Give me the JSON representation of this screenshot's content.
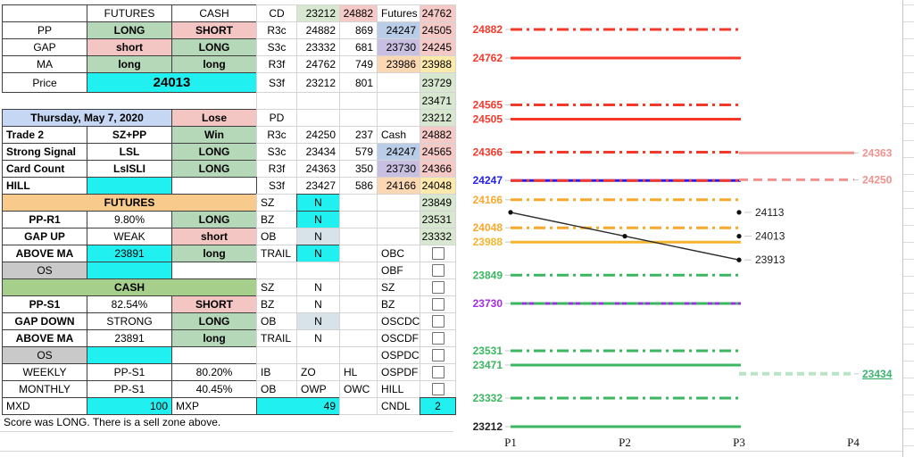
{
  "notes": {
    "score": "Score was LONG. There is a sell zone above."
  },
  "spreadsheet": {
    "origin_x": 2,
    "origin_y": 5,
    "columns": {
      "A": 95,
      "B": 95,
      "C": 95,
      "D": 45,
      "E": 48,
      "F": 42,
      "G": 48,
      "H": 40
    },
    "palette": {
      "g": "#b5d8b9",
      "p": "#f3c5c3",
      "cy": "#21f0f0",
      "bl": "#c6d7f3",
      "or": "#f8cb8d",
      "gh": "#a6cf8b",
      "gy": "#c9c9c9",
      "b2": "#b9cde9",
      "pu": "#c9bfe1",
      "oc": "#fbd8b3",
      "yc": "#fde9a9",
      "pk": "#f4c9c6",
      "gn": "#d8e7cf",
      "nb": "#d7e3e8"
    },
    "rows": [
      {
        "cells": [
          {
            "c": "B",
            "t": "FUTURES"
          },
          {
            "c": "C",
            "t": "CASH"
          },
          {
            "c": "D",
            "t": "CD"
          },
          {
            "c": "E",
            "t": "23212",
            "bg": "gn",
            "a": "r"
          },
          {
            "c": "F",
            "t": "24882",
            "bg": "pk",
            "a": "r"
          },
          {
            "c": "G",
            "t": "Futures",
            "a": "l"
          },
          {
            "c": "H",
            "t": "24762",
            "bg": "pk",
            "a": "r"
          }
        ]
      },
      {
        "cells": [
          {
            "c": "A",
            "t": "PP"
          },
          {
            "c": "B",
            "t": "LONG",
            "bg": "g",
            "b": 1
          },
          {
            "c": "C",
            "t": "SHORT",
            "bg": "p",
            "b": 1
          },
          {
            "c": "D",
            "t": "R3c"
          },
          {
            "c": "E",
            "t": "24882",
            "a": "r"
          },
          {
            "c": "F",
            "t": "869",
            "a": "r"
          },
          {
            "c": "G",
            "t": "24247",
            "bg": "b2",
            "a": "r"
          },
          {
            "c": "H",
            "t": "24505",
            "bg": "pk",
            "a": "r"
          }
        ]
      },
      {
        "cells": [
          {
            "c": "A",
            "t": "GAP"
          },
          {
            "c": "B",
            "t": "short",
            "bg": "p",
            "b": 1
          },
          {
            "c": "C",
            "t": "LONG",
            "bg": "g",
            "b": 1
          },
          {
            "c": "D",
            "t": "S3c"
          },
          {
            "c": "E",
            "t": "23332",
            "a": "r"
          },
          {
            "c": "F",
            "t": "681",
            "a": "r"
          },
          {
            "c": "G",
            "t": "23730",
            "bg": "pu",
            "a": "r"
          },
          {
            "c": "H",
            "t": "24245",
            "bg": "pk",
            "a": "r"
          }
        ]
      },
      {
        "cells": [
          {
            "c": "A",
            "t": "MA"
          },
          {
            "c": "B",
            "t": "long",
            "bg": "g",
            "b": 1
          },
          {
            "c": "C",
            "t": "long",
            "bg": "g",
            "b": 1
          },
          {
            "c": "D",
            "t": "R3f"
          },
          {
            "c": "E",
            "t": "24762",
            "a": "r"
          },
          {
            "c": "F",
            "t": "749",
            "a": "r"
          },
          {
            "c": "G",
            "t": "23986",
            "bg": "oc",
            "a": "r"
          },
          {
            "c": "H",
            "t": "23988",
            "bg": "yc",
            "a": "r"
          }
        ]
      },
      {
        "h": 22,
        "cells": [
          {
            "c": "A",
            "t": "Price"
          },
          {
            "c": "B",
            "s": 2,
            "t": "24013",
            "bg": "cy",
            "b": 1,
            "fs": 15
          },
          {
            "c": "D",
            "t": "S3f"
          },
          {
            "c": "E",
            "t": "23212",
            "a": "r"
          },
          {
            "c": "F",
            "t": "801",
            "a": "r"
          },
          {
            "c": "H",
            "t": "23729",
            "bg": "gn",
            "a": "r"
          }
        ]
      },
      {
        "noleft": 1,
        "cells": [
          {
            "c": "H",
            "t": "23471",
            "bg": "gn",
            "a": "r"
          }
        ]
      },
      {
        "cells": [
          {
            "c": "A",
            "s": 2,
            "t": "Thursday, May 7, 2020",
            "bg": "bl",
            "b": 1
          },
          {
            "c": "C",
            "t": "Lose",
            "bg": "p",
            "b": 1
          },
          {
            "c": "D",
            "t": "PD"
          },
          {
            "c": "H",
            "t": "23212",
            "bg": "gn",
            "a": "r"
          }
        ]
      },
      {
        "cells": [
          {
            "c": "A",
            "t": "Trade 2",
            "a": "l",
            "b": 1
          },
          {
            "c": "B",
            "t": "SZ+PP",
            "b": 1
          },
          {
            "c": "C",
            "t": "Win",
            "bg": "g",
            "b": 1
          },
          {
            "c": "D",
            "t": "R3c"
          },
          {
            "c": "E",
            "t": "24250",
            "a": "r"
          },
          {
            "c": "F",
            "t": "237",
            "a": "r"
          },
          {
            "c": "G",
            "t": "Cash",
            "a": "l"
          },
          {
            "c": "H",
            "t": "24882",
            "bg": "pk",
            "a": "r"
          }
        ]
      },
      {
        "cells": [
          {
            "c": "A",
            "t": "Strong Signal",
            "a": "l",
            "b": 1
          },
          {
            "c": "B",
            "t": "LSL",
            "b": 1
          },
          {
            "c": "C",
            "t": "LONG",
            "bg": "g",
            "b": 1
          },
          {
            "c": "D",
            "t": "S3c"
          },
          {
            "c": "E",
            "t": "23434",
            "a": "r"
          },
          {
            "c": "F",
            "t": "579",
            "a": "r"
          },
          {
            "c": "G",
            "t": "24247",
            "bg": "b2",
            "a": "r"
          },
          {
            "c": "H",
            "t": "24565",
            "bg": "pk",
            "a": "r"
          }
        ]
      },
      {
        "cells": [
          {
            "c": "A",
            "t": "Card Count",
            "a": "l",
            "b": 1
          },
          {
            "c": "B",
            "t": "LsISLI",
            "b": 1
          },
          {
            "c": "C",
            "t": "LONG",
            "bg": "g",
            "b": 1
          },
          {
            "c": "D",
            "t": "R3f"
          },
          {
            "c": "E",
            "t": "24363",
            "a": "r"
          },
          {
            "c": "F",
            "t": "350",
            "a": "r"
          },
          {
            "c": "G",
            "t": "23730",
            "bg": "pu",
            "a": "r"
          },
          {
            "c": "H",
            "t": "24366",
            "bg": "pk",
            "a": "r"
          }
        ]
      },
      {
        "cells": [
          {
            "c": "A",
            "t": "HILL",
            "a": "l",
            "b": 1
          },
          {
            "c": "B",
            "t": "",
            "bg": "cy"
          },
          {
            "c": "D",
            "t": "S3f"
          },
          {
            "c": "E",
            "t": "23427",
            "a": "r"
          },
          {
            "c": "F",
            "t": "586",
            "a": "r"
          },
          {
            "c": "G",
            "t": "24166",
            "bg": "oc",
            "a": "r"
          },
          {
            "c": "H",
            "t": "24048",
            "bg": "yc",
            "a": "r"
          }
        ]
      },
      {
        "cells": [
          {
            "c": "A",
            "s": 3,
            "t": "FUTURES",
            "bg": "or",
            "b": 1
          },
          {
            "c": "D",
            "t": "SZ",
            "a": "l"
          },
          {
            "c": "E",
            "t": "N",
            "bg": "cy",
            "bd": "d"
          },
          {
            "c": "H",
            "t": "23849",
            "bg": "gn",
            "a": "r"
          }
        ]
      },
      {
        "cells": [
          {
            "c": "A",
            "t": "PP-R1",
            "b": 1
          },
          {
            "c": "B",
            "t": "9.80%"
          },
          {
            "c": "C",
            "t": "LONG",
            "bg": "g",
            "b": 1
          },
          {
            "c": "D",
            "t": "BZ",
            "a": "l"
          },
          {
            "c": "E",
            "t": "N",
            "bg": "cy",
            "bd": "d"
          },
          {
            "c": "H",
            "t": "23531",
            "bg": "gn",
            "a": "r"
          }
        ]
      },
      {
        "cells": [
          {
            "c": "A",
            "t": "GAP UP",
            "b": 1
          },
          {
            "c": "B",
            "t": "WEAK"
          },
          {
            "c": "C",
            "t": "short",
            "bg": "p",
            "b": 1
          },
          {
            "c": "D",
            "t": "OB",
            "a": "l"
          },
          {
            "c": "E",
            "t": "N",
            "bg": "nb"
          },
          {
            "c": "H",
            "t": "23332",
            "bg": "gn",
            "a": "r"
          }
        ]
      },
      {
        "cells": [
          {
            "c": "A",
            "t": "ABOVE MA",
            "b": 1
          },
          {
            "c": "B",
            "t": "23891",
            "bg": "cy"
          },
          {
            "c": "C",
            "t": "long",
            "bg": "g",
            "b": 1
          },
          {
            "c": "D",
            "t": "TRAIL",
            "a": "l"
          },
          {
            "c": "E",
            "t": "N",
            "bg": "cy",
            "bd": "d"
          },
          {
            "c": "G",
            "t": "OBC",
            "a": "l"
          },
          {
            "c": "H",
            "cb": 1
          }
        ]
      },
      {
        "cells": [
          {
            "c": "A",
            "t": "OS",
            "bg": "gy"
          },
          {
            "c": "B",
            "t": "",
            "bg": "cy"
          },
          {
            "c": "G",
            "t": "OBF",
            "a": "l"
          },
          {
            "c": "H",
            "cb": 1
          }
        ]
      },
      {
        "cells": [
          {
            "c": "A",
            "s": 3,
            "t": "CASH",
            "bg": "gh",
            "b": 1
          },
          {
            "c": "D",
            "t": "SZ",
            "a": "l"
          },
          {
            "c": "E",
            "t": "N"
          },
          {
            "c": "G",
            "t": "SZ",
            "a": "l"
          },
          {
            "c": "H",
            "cb": 1
          }
        ]
      },
      {
        "cells": [
          {
            "c": "A",
            "t": "PP-S1",
            "b": 1
          },
          {
            "c": "B",
            "t": "82.54%"
          },
          {
            "c": "C",
            "t": "SHORT",
            "bg": "p",
            "b": 1
          },
          {
            "c": "D",
            "t": "BZ",
            "a": "l"
          },
          {
            "c": "E",
            "t": "N"
          },
          {
            "c": "G",
            "t": "BZ",
            "a": "l"
          },
          {
            "c": "H",
            "cb": 1
          }
        ]
      },
      {
        "cells": [
          {
            "c": "A",
            "t": "GAP DOWN",
            "b": 1
          },
          {
            "c": "B",
            "t": "STRONG"
          },
          {
            "c": "C",
            "t": "LONG",
            "bg": "g",
            "b": 1
          },
          {
            "c": "D",
            "t": "OB",
            "a": "l"
          },
          {
            "c": "E",
            "t": "N",
            "bg": "nb"
          },
          {
            "c": "G",
            "t": "OSCDC",
            "a": "l"
          },
          {
            "c": "H",
            "cb": 1
          }
        ]
      },
      {
        "cells": [
          {
            "c": "A",
            "t": "ABOVE MA",
            "b": 1
          },
          {
            "c": "B",
            "t": "23891"
          },
          {
            "c": "C",
            "t": "long",
            "bg": "g",
            "b": 1
          },
          {
            "c": "D",
            "t": "TRAIL",
            "a": "l"
          },
          {
            "c": "E",
            "t": "N"
          },
          {
            "c": "G",
            "t": "OSCDF",
            "a": "l"
          },
          {
            "c": "H",
            "cb": 1
          }
        ]
      },
      {
        "cells": [
          {
            "c": "A",
            "t": "OS",
            "bg": "gy"
          },
          {
            "c": "B",
            "t": "",
            "bg": "cy"
          },
          {
            "c": "G",
            "t": "OSPDC",
            "a": "l"
          },
          {
            "c": "H",
            "cb": 1
          }
        ]
      },
      {
        "cells": [
          {
            "c": "A",
            "t": "WEEKLY"
          },
          {
            "c": "B",
            "t": "PP-S1"
          },
          {
            "c": "C",
            "t": "80.20%"
          },
          {
            "c": "D",
            "t": "IB",
            "a": "l"
          },
          {
            "c": "E",
            "t": "ZO",
            "a": "l"
          },
          {
            "c": "F",
            "t": "HL",
            "a": "l"
          },
          {
            "c": "G",
            "t": "OSPDF",
            "a": "l"
          },
          {
            "c": "H",
            "cb": 1
          }
        ]
      },
      {
        "cells": [
          {
            "c": "A",
            "t": "MONTHLY"
          },
          {
            "c": "B",
            "t": "PP-S1"
          },
          {
            "c": "C",
            "t": "40.45%"
          },
          {
            "c": "D",
            "t": "OB",
            "a": "l"
          },
          {
            "c": "E",
            "t": "OWP",
            "a": "l"
          },
          {
            "c": "F",
            "t": "OWC",
            "a": "l"
          },
          {
            "c": "G",
            "t": "HILL",
            "a": "l"
          },
          {
            "c": "H",
            "cb": 1
          }
        ]
      },
      {
        "cells": [
          {
            "c": "A",
            "t": "MXD",
            "a": "l"
          },
          {
            "c": "B",
            "t": "100",
            "bg": "cy",
            "a": "r"
          },
          {
            "c": "C",
            "t": "MXP",
            "a": "l"
          },
          {
            "c": "D",
            "s": 2,
            "t": "49",
            "bg": "cy",
            "a": "r",
            "bd": "d"
          },
          {
            "c": "G",
            "t": "CNDL",
            "a": "l"
          },
          {
            "c": "H",
            "t": "2",
            "bg": "cy",
            "bd": "d"
          }
        ]
      }
    ]
  },
  "chart_data": {
    "type": "line",
    "x_categories": [
      "P1",
      "P2",
      "P3",
      "P4"
    ],
    "ylim": [
      23212,
      24882
    ],
    "grid": false,
    "palette": {
      "red": "#f4392b",
      "blue": "#2420f0",
      "orange": "#f7a82b",
      "gold": "#f2b52d",
      "green": "#3bb661",
      "purple": "#a32ce6",
      "salmon": "#f0928e",
      "lightgreen_line": "#b9e5c5",
      "lightgreen_label": "#3cb371",
      "black": "#222222"
    },
    "levels": [
      {
        "v": 24882,
        "color": "red",
        "style": "dashdot",
        "span": "main"
      },
      {
        "v": 24762,
        "color": "red",
        "style": "solid",
        "span": "main"
      },
      {
        "v": 24565,
        "color": "red",
        "style": "dashdot",
        "span": "main"
      },
      {
        "v": 24505,
        "color": "red",
        "style": "solid",
        "span": "main"
      },
      {
        "v": 24366,
        "color": "red",
        "style": "dashdot",
        "span": "main"
      },
      {
        "v": 24247,
        "color": "blue",
        "style": "solid",
        "span": "main",
        "overlay": {
          "color": "red",
          "style": "dashdot"
        }
      },
      {
        "v": 24166,
        "color": "orange",
        "style": "dashdot",
        "span": "main"
      },
      {
        "v": 24048,
        "color": "orange",
        "style": "dashdot",
        "span": "main"
      },
      {
        "v": 23988,
        "color": "gold",
        "style": "solid",
        "span": "main"
      },
      {
        "v": 23849,
        "color": "green",
        "style": "dashdot",
        "span": "main"
      },
      {
        "v": 23730,
        "color": "purple",
        "style": "solid",
        "span": "main",
        "overlay": {
          "color": "green",
          "style": "dashdot"
        }
      },
      {
        "v": 23531,
        "color": "green",
        "style": "dashdot",
        "span": "main"
      },
      {
        "v": 23471,
        "color": "green",
        "style": "solid",
        "span": "main"
      },
      {
        "v": 23332,
        "color": "green",
        "style": "dashdot",
        "span": "main"
      },
      {
        "v": 23212,
        "color": "green",
        "style": "solid",
        "span": "main",
        "label": "black"
      },
      {
        "v": 24363,
        "color": "salmon",
        "style": "solid",
        "span": "right"
      },
      {
        "v": 24250,
        "color": "salmon",
        "style": "dashed",
        "span": "right"
      },
      {
        "v": 23434,
        "color": "lightgreen_line",
        "style": "dashedwide",
        "span": "right",
        "label": "lightgreen_label",
        "underline": 1,
        "lw": 4
      }
    ],
    "series": {
      "name": "price-path",
      "color": "#2c2c2c",
      "points": [
        {
          "x": "P1",
          "value": 24113
        },
        {
          "x": "P2",
          "value": 24013
        },
        {
          "x": "P3",
          "value": 23913
        }
      ]
    },
    "annotations": [
      {
        "value": 24113
      },
      {
        "value": 24013
      },
      {
        "value": 23913
      }
    ]
  }
}
